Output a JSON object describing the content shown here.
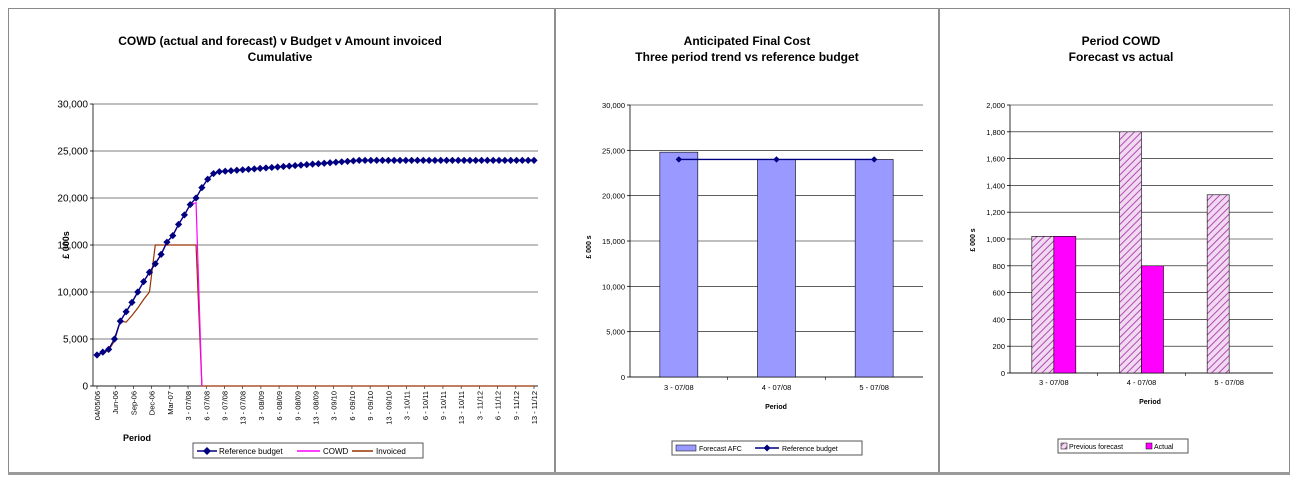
{
  "chart_data": [
    {
      "type": "line",
      "title": "COWD (actual and forecast) v Budget v Amount invoiced",
      "subtitle": "Cumulative",
      "xlabel": "Period",
      "ylabel": "£ 000s",
      "ylim": [
        0,
        30000
      ],
      "yticks": [
        "0",
        "5,000",
        "10,000",
        "15,000",
        "20,000",
        "25,000",
        "30,000"
      ],
      "x_tick_labels": [
        "04/05/06",
        "Jun-06",
        "Sep-06",
        "Dec-06",
        "Mar-07",
        "3 - 07/08",
        "6 - 07/08",
        "9 - 07/08",
        "13 - 07/08",
        "3 - 08/09",
        "6 - 08/09",
        "9 - 08/09",
        "13 - 08/09",
        "3 - 09/10",
        "6 - 09/10",
        "9 - 09/10",
        "13 - 09/10",
        "3 - 10/11",
        "6 - 10/11",
        "9 - 10/11",
        "13 - 10/11",
        "3 - 11/12",
        "6 - 11/12",
        "9 - 11/12",
        "13 - 11/12"
      ],
      "x_count": 76,
      "grid": true,
      "legend": "bottom",
      "series": [
        {
          "name": "Reference budget",
          "color": "#000080",
          "marker": "diamond",
          "values": [
            3300,
            3600,
            3900,
            5000,
            6900,
            7900,
            8900,
            10000,
            11100,
            12100,
            13000,
            14000,
            15300,
            16000,
            17200,
            18200,
            19300,
            20000,
            21100,
            22000,
            22600,
            22800,
            22850,
            22900,
            22950,
            23000,
            23050,
            23100,
            23150,
            23200,
            23250,
            23300,
            23350,
            23400,
            23450,
            23500,
            23550,
            23600,
            23650,
            23700,
            23750,
            23800,
            23850,
            23900,
            23950,
            24000,
            24000,
            24000,
            24000,
            24000,
            24000,
            24000,
            24000,
            24000,
            24000,
            24000,
            24000,
            24000,
            24000,
            24000,
            24000,
            24000,
            24000,
            24000,
            24000,
            24000,
            24000,
            24000,
            24000,
            24000,
            24000,
            24000,
            24000,
            24000,
            24000,
            24000
          ]
        },
        {
          "name": "COWD",
          "color": "#ff00ff",
          "values": [
            3300,
            3600,
            3900,
            5000,
            6900,
            7900,
            8900,
            10000,
            11100,
            12100,
            13000,
            14000,
            15300,
            16000,
            17200,
            18200,
            19300,
            19500,
            0
          ]
        },
        {
          "name": "Invoiced",
          "color": "#993300",
          "values": [
            3300,
            3500,
            3800,
            4800,
            6900,
            6800,
            7500,
            8300,
            9200,
            10000,
            15000,
            15000,
            15000,
            15000,
            15000,
            15000,
            15000,
            15000,
            0,
            0,
            0,
            0,
            0,
            0,
            0,
            0,
            0,
            0,
            0,
            0,
            0,
            0,
            0,
            0,
            0,
            0,
            0,
            0,
            0,
            0,
            0,
            0,
            0,
            0,
            0,
            0,
            0,
            0,
            0,
            0,
            0,
            0,
            0,
            0,
            0,
            0,
            0,
            0,
            0,
            0,
            0,
            0,
            0,
            0,
            0,
            0,
            0,
            0,
            0,
            0,
            0,
            0,
            0,
            0,
            0,
            0
          ]
        }
      ]
    },
    {
      "type": "bar",
      "title": "Anticipated Final Cost",
      "subtitle": "Three period trend vs reference budget",
      "xlabel": "Period",
      "ylabel": "£ 000 s",
      "ylim": [
        0,
        30000
      ],
      "yticks": [
        "0",
        "5,000",
        "10,000",
        "15,000",
        "20,000",
        "25,000",
        "30,000"
      ],
      "categories": [
        "3 - 07/08",
        "4 - 07/08",
        "5 - 07/08"
      ],
      "grid": true,
      "legend": "bottom",
      "series": [
        {
          "name": "Forecast AFC",
          "color": "#9999ff",
          "values": [
            24800,
            24000,
            24000
          ]
        },
        {
          "name": "Reference budget",
          "color": "#000080",
          "marker": "diamond",
          "values": [
            24000,
            24000,
            24000
          ]
        }
      ]
    },
    {
      "type": "bar",
      "title": "Period COWD",
      "subtitle": "Forecast vs actual",
      "xlabel": "Period",
      "ylabel": "£ 000 s",
      "ylim": [
        0,
        2000
      ],
      "yticks": [
        "0",
        "200",
        "400",
        "600",
        "800",
        "1,000",
        "1,200",
        "1,400",
        "1,600",
        "1,800",
        "2,000"
      ],
      "categories": [
        "3 - 07/08",
        "4 - 07/08",
        "5 - 07/08"
      ],
      "grid": true,
      "legend": "bottom",
      "series": [
        {
          "name": "Previous forecast",
          "color": "#cc66cc",
          "pattern": "hatched",
          "values": [
            1020,
            1800,
            1330
          ]
        },
        {
          "name": "Actual",
          "color": "#ff00ff",
          "values": [
            1020,
            800,
            null
          ]
        }
      ]
    }
  ]
}
